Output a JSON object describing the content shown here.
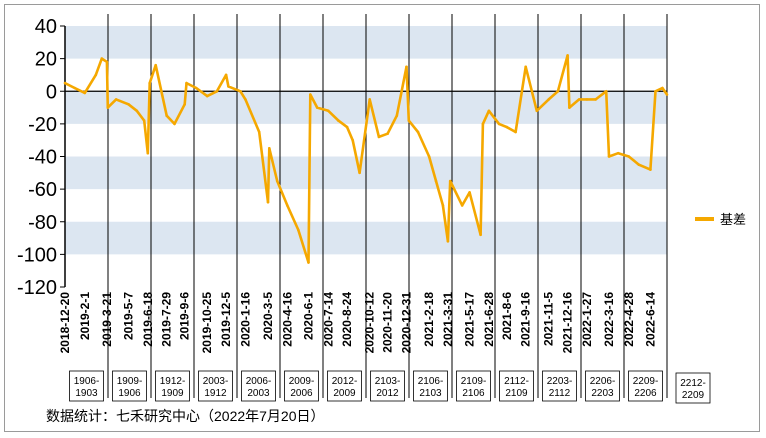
{
  "chart_data": {
    "type": "line",
    "title": "",
    "xlabel": "",
    "ylabel": "",
    "ylim": [
      -120,
      40
    ],
    "yticks": [
      40,
      20,
      0,
      -20,
      -40,
      -60,
      -80,
      -100,
      -120
    ],
    "grid": "horizontal bands",
    "legend_position": "right",
    "date_labels": [
      "2018-12-20",
      "2019-2-1",
      "2019-3-21",
      "2019-5-7",
      "2019-6-18",
      "2019-7-29",
      "2019-9-6",
      "2019-10-25",
      "2019-12-5",
      "2020-1-16",
      "2020-3-5",
      "2020-4-16",
      "2020-6-1",
      "2020-7-14",
      "2020-8-24",
      "2020-10-12",
      "2020-11-20",
      "2020-12-31",
      "2021-2-18",
      "2021-3-31",
      "2021-5-17",
      "2021-6-28",
      "2021-8-6",
      "2021-9-16",
      "2021-11-5",
      "2021-12-16",
      "2022-1-27",
      "2022-3-16",
      "2022-4-28",
      "2022-6-14"
    ],
    "contract_windows": [
      "1906-1903",
      "1909-1906",
      "1912-1909",
      "2003-1912",
      "2006-2003",
      "2009-2006",
      "2012-2009",
      "2103-2012",
      "2106-2103",
      "2109-2106",
      "2112-2109",
      "2203-2112",
      "2206-2203",
      "2209-2206",
      "2212-2209"
    ],
    "series": [
      {
        "name": "基差",
        "color": "#F5A800",
        "x": [
          "2018-12-20",
          "2019-1-10",
          "2019-2-1",
          "2019-2-25",
          "2019-3-10",
          "2019-3-21",
          "2019-3-23",
          "2019-4-10",
          "2019-5-7",
          "2019-5-25",
          "2019-6-10",
          "2019-6-18",
          "2019-6-22",
          "2019-7-5",
          "2019-7-29",
          "2019-8-15",
          "2019-9-6",
          "2019-9-10",
          "2019-10-1",
          "2019-10-25",
          "2019-11-15",
          "2019-12-5",
          "2019-12-10",
          "2020-1-5",
          "2020-1-16",
          "2020-2-15",
          "2020-3-5",
          "2020-3-8",
          "2020-3-25",
          "2020-4-16",
          "2020-5-10",
          "2020-6-1",
          "2020-6-5",
          "2020-6-20",
          "2020-7-14",
          "2020-8-5",
          "2020-8-24",
          "2020-9-5",
          "2020-9-20",
          "2020-10-12",
          "2020-11-1",
          "2020-11-20",
          "2020-12-10",
          "2020-12-31",
          "2021-1-5",
          "2021-1-25",
          "2021-2-18",
          "2021-3-5",
          "2021-3-20",
          "2021-3-31",
          "2021-4-5",
          "2021-5-1",
          "2021-5-17",
          "2021-6-10",
          "2021-6-15",
          "2021-6-28",
          "2021-7-20",
          "2021-8-6",
          "2021-8-25",
          "2021-9-16",
          "2021-10-10",
          "2021-11-5",
          "2021-11-25",
          "2021-12-16",
          "2021-12-20",
          "2022-1-10",
          "2022-1-27",
          "2022-2-15",
          "2022-3-10",
          "2022-3-16",
          "2022-4-5",
          "2022-4-28",
          "2022-5-20",
          "2022-6-14",
          "2022-6-25",
          "2022-7-10",
          "2022-7-20"
        ],
        "values": [
          5,
          2,
          -1,
          10,
          20,
          18,
          -10,
          -5,
          -8,
          -12,
          -18,
          -38,
          5,
          16,
          -15,
          -20,
          -8,
          5,
          2,
          -3,
          0,
          10,
          3,
          0,
          -5,
          -25,
          -68,
          -35,
          -55,
          -70,
          -85,
          -105,
          -2,
          -10,
          -12,
          -18,
          -22,
          -30,
          -50,
          -5,
          -28,
          -26,
          -15,
          15,
          -18,
          -25,
          -40,
          -55,
          -70,
          -92,
          -55,
          -70,
          -62,
          -88,
          -20,
          -12,
          -20,
          -22,
          -25,
          15,
          -12,
          -5,
          0,
          22,
          -10,
          -5,
          -5,
          -5,
          0,
          -40,
          -38,
          -40,
          -45,
          -48,
          0,
          2,
          -2
        ]
      }
    ]
  },
  "source_note": "数据统计：七禾研究中心（2022年7月20日）"
}
